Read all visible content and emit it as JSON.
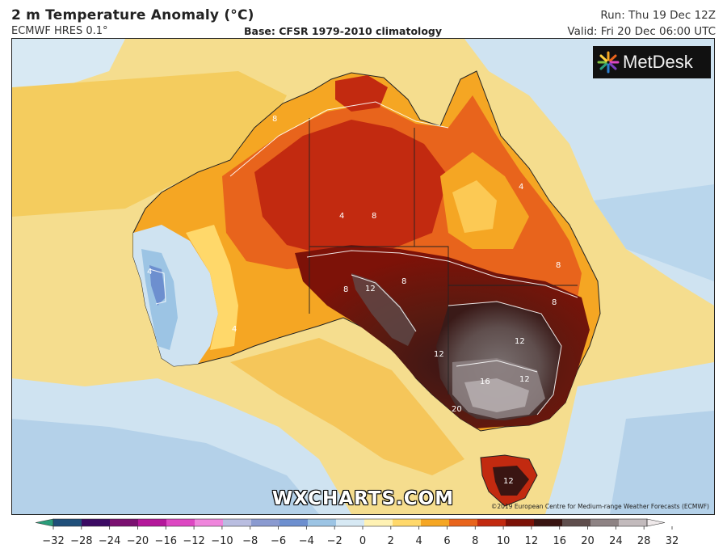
{
  "header": {
    "title": "2 m Temperature Anomaly (°C)",
    "model": "ECMWF HRES 0.1°",
    "base": "Base: CFSR 1979-2010 climatology",
    "run": "Run: Thu 19 Dec 12Z",
    "valid": "Valid: Fri 20 Dec 06:00 UTC"
  },
  "logo": {
    "text": "MetDesk",
    "icon": "radial-burst-icon"
  },
  "watermark": "WXCHARTS.COM",
  "copyright": "©2019 European Centre for Medium-range Weather Forecasts (ECMWF)",
  "contour_labels": [
    "4",
    "8",
    "12",
    "16",
    "20"
  ],
  "colorbar": {
    "ticks": [
      "−32",
      "−28",
      "−24",
      "−20",
      "−16",
      "−12",
      "−10",
      "−8",
      "−6",
      "−4",
      "−2",
      "0",
      "2",
      "4",
      "6",
      "8",
      "10",
      "12",
      "16",
      "20",
      "24",
      "28",
      "32"
    ],
    "colors": [
      "#2a9d7a",
      "#1f4f7a",
      "#3b0a63",
      "#7a1070",
      "#b4179a",
      "#dd47c2",
      "#ef85dc",
      "#b9bde0",
      "#8a9ad0",
      "#6d8fcf",
      "#9cc4e4",
      "#d7e9f4",
      "#fff2b4",
      "#ffd86a",
      "#f5a623",
      "#e8641c",
      "#c22a10",
      "#7d1208",
      "#3a1512",
      "#5f4e4d",
      "#8e8384",
      "#c2babc",
      "#efe9ea"
    ]
  }
}
